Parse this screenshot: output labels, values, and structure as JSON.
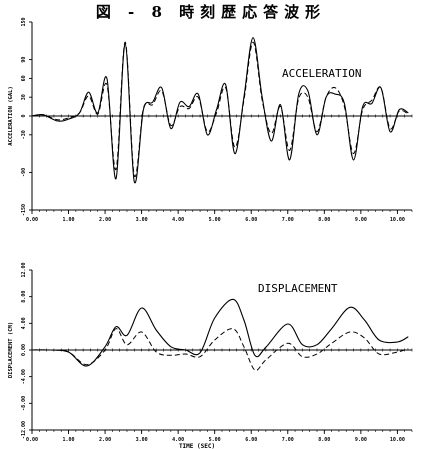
{
  "page": {
    "title": "図 - 8 時刻歴応答波形"
  },
  "chart_data": [
    {
      "type": "line",
      "annotation": "ACCELERATION",
      "ylabel": "ACCELERATION (GAL)",
      "xlabel": "",
      "xlim": [
        0,
        10.4
      ],
      "ylim": [
        -150,
        150
      ],
      "x_ticks": [
        0,
        1,
        2,
        3,
        4,
        5,
        6,
        7,
        8,
        9,
        10
      ],
      "x_tick_labels": [
        "0.00",
        "1.00",
        "2.00",
        "3.00",
        "4.00",
        "5.00",
        "6.00",
        "7.00",
        "8.00",
        "9.00",
        "10.00"
      ],
      "y_ticks": [
        150,
        90,
        60,
        30,
        0,
        -30,
        -90,
        -150
      ],
      "y_tick_labels": [
        "150",
        "90",
        "60",
        "30",
        "0",
        "-30",
        "-90",
        "-150"
      ],
      "grid": false,
      "series": [
        {
          "style": "solid",
          "x": [
            0,
            0.3,
            0.7,
            1.0,
            1.3,
            1.55,
            1.8,
            2.05,
            2.3,
            2.55,
            2.8,
            3.05,
            3.3,
            3.55,
            3.8,
            4.05,
            4.3,
            4.55,
            4.8,
            5.05,
            5.3,
            5.55,
            5.8,
            6.05,
            6.3,
            6.55,
            6.8,
            7.05,
            7.3,
            7.55,
            7.8,
            8.05,
            8.3,
            8.55,
            8.8,
            9.05,
            9.3,
            9.55,
            9.8,
            10.05,
            10.3
          ],
          "y": [
            0,
            2,
            -8,
            -5,
            5,
            38,
            5,
            60,
            -100,
            115,
            -105,
            10,
            22,
            45,
            -20,
            22,
            15,
            35,
            -30,
            10,
            50,
            -60,
            30,
            125,
            30,
            -40,
            18,
            -70,
            35,
            40,
            -30,
            30,
            35,
            20,
            -70,
            15,
            20,
            45,
            -25,
            10,
            5
          ]
        },
        {
          "style": "dashed",
          "x": [
            0,
            0.3,
            0.7,
            1.0,
            1.3,
            1.55,
            1.8,
            2.05,
            2.3,
            2.55,
            2.8,
            3.05,
            3.3,
            3.55,
            3.8,
            4.05,
            4.3,
            4.55,
            4.8,
            5.05,
            5.3,
            5.55,
            5.8,
            6.05,
            6.3,
            6.55,
            6.8,
            7.05,
            7.3,
            7.55,
            7.8,
            8.05,
            8.3,
            8.55,
            8.8,
            9.05,
            9.3,
            9.55,
            9.8,
            10.05,
            10.3
          ],
          "y": [
            0,
            2,
            -6,
            -3,
            5,
            32,
            3,
            50,
            -85,
            118,
            -95,
            12,
            18,
            40,
            -15,
            15,
            12,
            30,
            -25,
            5,
            45,
            -50,
            25,
            118,
            25,
            -28,
            15,
            -55,
            28,
            30,
            -25,
            30,
            45,
            15,
            -60,
            10,
            25,
            45,
            -20,
            8,
            3
          ]
        }
      ]
    },
    {
      "type": "line",
      "annotation": "DISPLACEMENT",
      "ylabel": "DISPLACEMENT (CM)",
      "xlabel": "TIME (SEC)",
      "xlim": [
        0,
        10.4
      ],
      "ylim": [
        -12,
        12
      ],
      "x_ticks": [
        0,
        1,
        2,
        3,
        4,
        5,
        6,
        7,
        8,
        9,
        10
      ],
      "x_tick_labels": [
        "0.00",
        "1.00",
        "2.00",
        "3.00",
        "4.00",
        "5.00",
        "6.00",
        "7.00",
        "8.00",
        "9.00",
        "10.00"
      ],
      "y_ticks": [
        12,
        8,
        4,
        0,
        -4,
        -8,
        -12
      ],
      "y_tick_labels": [
        "12.00",
        "8.00",
        "4.00",
        "0.00",
        "-4.00",
        "-8.00",
        "-12.00"
      ],
      "grid": false,
      "series": [
        {
          "style": "solid",
          "x": [
            0,
            0.5,
            1.0,
            1.5,
            2.0,
            2.3,
            2.6,
            3.0,
            3.4,
            3.8,
            4.2,
            4.6,
            5.0,
            5.5,
            5.8,
            6.1,
            6.4,
            7.0,
            7.4,
            7.8,
            8.2,
            8.7,
            9.1,
            9.5,
            10.0,
            10.3
          ],
          "y": [
            0,
            0,
            -0.3,
            -2.4,
            0.5,
            3.5,
            2.2,
            6.3,
            3.0,
            0.5,
            0.0,
            -0.4,
            4.8,
            7.6,
            4.5,
            -0.8,
            0.4,
            3.9,
            0.8,
            0.8,
            3.2,
            6.4,
            4.5,
            1.5,
            1.2,
            2.0
          ]
        },
        {
          "style": "dashed",
          "x": [
            0,
            0.5,
            1.0,
            1.5,
            2.0,
            2.3,
            2.6,
            3.0,
            3.4,
            3.8,
            4.2,
            4.6,
            5.0,
            5.5,
            5.8,
            6.1,
            6.4,
            7.0,
            7.4,
            7.8,
            8.2,
            8.7,
            9.1,
            9.5,
            10.0,
            10.3
          ],
          "y": [
            0,
            0,
            -0.3,
            -2.2,
            0.0,
            3.2,
            0.8,
            2.7,
            -0.3,
            -0.8,
            -0.6,
            -1.0,
            1.5,
            3.2,
            0.5,
            -3.0,
            -1.5,
            1.0,
            -1.0,
            -0.6,
            1.0,
            2.7,
            1.8,
            -0.6,
            -0.3,
            0.2
          ]
        }
      ]
    }
  ]
}
